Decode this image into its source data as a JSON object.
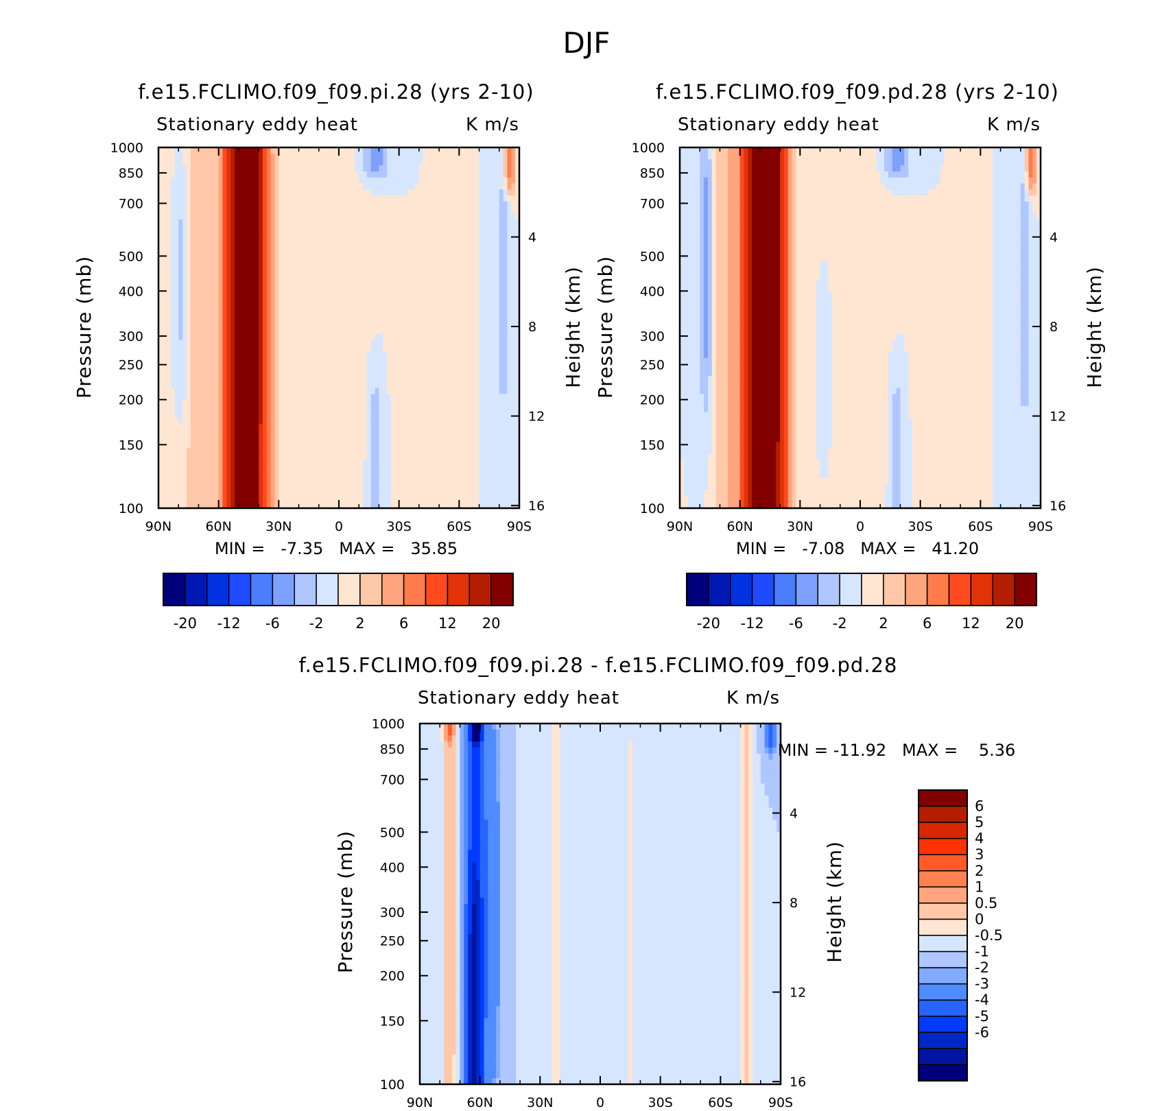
{
  "figure_title": "DJF",
  "colors": {
    "blue_red_16": [
      "#00007d",
      "#0019b4",
      "#0032e1",
      "#1e4bff",
      "#4b7dff",
      "#7ea0ff",
      "#afc6ff",
      "#d7e6ff",
      "#ffe6d2",
      "#ffc8a8",
      "#ffa47c",
      "#ff7b4b",
      "#ff4b1e",
      "#e1320a",
      "#b41e00",
      "#820000"
    ],
    "blue_red_18": [
      "#00007d",
      "#0014a0",
      "#0028c8",
      "#003cff",
      "#2864ff",
      "#508cff",
      "#82aaff",
      "#afc6ff",
      "#d7e6ff",
      "#ffe6d2",
      "#ffc8a8",
      "#ffa47c",
      "#ff8250",
      "#ff5a28",
      "#ff3200",
      "#d72800",
      "#b41e00",
      "#820000"
    ]
  },
  "chart_data": [
    {
      "type": "contour",
      "id": "pi",
      "title": "f.e15.FCLIMO.f09_f09.pi.28 (yrs 2-10)",
      "left_string": "Stationary eddy heat",
      "right_string": "K m/s",
      "ylabel": "Pressure (mb)",
      "y2label": "Height (km)",
      "x_ticks": [
        "90N",
        "60N",
        "30N",
        "0",
        "30S",
        "60S",
        "90S"
      ],
      "y_ticks": [
        "100",
        "150",
        "200",
        "250",
        "300",
        "400",
        "500",
        "700",
        "850",
        "1000"
      ],
      "y2_ticks": [
        "16",
        "12",
        "8",
        "4"
      ],
      "stats_text": "MIN =   -7.35   MAX =   35.85",
      "min": -7.35,
      "max": 35.85,
      "colorbar_labels": [
        "-20",
        "-12",
        "-6",
        "-2",
        "2",
        "6",
        "12",
        "20"
      ],
      "features": [
        {
          "lat": 47,
          "p_low": 100,
          "p_high": 1000,
          "amp": 30,
          "lw": 9,
          "dw": 1.0
        },
        {
          "lat": 45,
          "p_low": 300,
          "p_high": 1000,
          "amp": 8,
          "lw": 5,
          "dw": 0.45
        },
        {
          "lat": 70,
          "p_low": 150,
          "p_high": 1000,
          "amp": 3.5,
          "lw": 7,
          "dw": 1.0
        },
        {
          "lat": 35,
          "p_low": 100,
          "p_high": 700,
          "amp": 1.5,
          "lw": 6,
          "dw": 0.8
        },
        {
          "lat": 78,
          "p_low": 300,
          "p_high": 600,
          "amp": -3,
          "lw": 3,
          "dw": 0.2
        },
        {
          "lat": -18,
          "p_low": 100,
          "p_high": 200,
          "amp": -2.5,
          "lw": 3.5,
          "dw": 0.12
        },
        {
          "lat": -18,
          "p_low": 900,
          "p_high": 1000,
          "amp": -5,
          "lw": 7,
          "dw": 0.05
        },
        {
          "lat": -5,
          "p_low": 300,
          "p_high": 900,
          "amp": 0.8,
          "lw": 12,
          "dw": 0.5
        },
        {
          "lat": -82,
          "p_low": 300,
          "p_high": 850,
          "amp": -3,
          "lw": 3,
          "dw": 0.3
        },
        {
          "lat": -85,
          "p_low": 850,
          "p_high": 1000,
          "amp": 8,
          "lw": 3,
          "dw": 0.06
        },
        {
          "lat": -62,
          "p_low": 300,
          "p_high": 800,
          "amp": 0.6,
          "lw": 2.5,
          "dw": 0.4
        }
      ]
    },
    {
      "type": "contour",
      "id": "pd",
      "title": "f.e15.FCLIMO.f09_f09.pd.28 (yrs 2-10)",
      "left_string": "Stationary eddy heat",
      "right_string": "K m/s",
      "ylabel": "Pressure (mb)",
      "y2label": "Height (km)",
      "x_ticks": [
        "90N",
        "60N",
        "30N",
        "0",
        "30S",
        "60S",
        "90S"
      ],
      "y_ticks": [
        "100",
        "150",
        "200",
        "250",
        "300",
        "400",
        "500",
        "700",
        "850",
        "1000"
      ],
      "y2_ticks": [
        "16",
        "12",
        "8",
        "4"
      ],
      "stats_text": "MIN =   -7.08   MAX =   41.20",
      "min": -7.08,
      "max": 41.2,
      "colorbar_labels": [
        "-20",
        "-12",
        "-6",
        "-2",
        "2",
        "6",
        "12",
        "20"
      ],
      "features": [
        {
          "lat": 48,
          "p_low": 100,
          "p_high": 1000,
          "amp": 33,
          "lw": 9,
          "dw": 1.0
        },
        {
          "lat": 47,
          "p_low": 300,
          "p_high": 1000,
          "amp": 8,
          "lw": 5,
          "dw": 0.45
        },
        {
          "lat": 67,
          "p_low": 100,
          "p_high": 1000,
          "amp": 3.5,
          "lw": 6,
          "dw": 1.0
        },
        {
          "lat": 77,
          "p_low": 300,
          "p_high": 700,
          "amp": -4.5,
          "lw": 3.5,
          "dw": 0.25
        },
        {
          "lat": 36,
          "p_low": 100,
          "p_high": 700,
          "amp": 1.5,
          "lw": 6,
          "dw": 0.8
        },
        {
          "lat": 18,
          "p_low": 200,
          "p_high": 300,
          "amp": -2,
          "lw": 2,
          "dw": 0.1
        },
        {
          "lat": -18,
          "p_low": 100,
          "p_high": 200,
          "amp": -2.5,
          "lw": 3.5,
          "dw": 0.12
        },
        {
          "lat": -18,
          "p_low": 900,
          "p_high": 1000,
          "amp": -5,
          "lw": 7,
          "dw": 0.05
        },
        {
          "lat": -5,
          "p_low": 250,
          "p_high": 900,
          "amp": 0.8,
          "lw": 12,
          "dw": 0.5
        },
        {
          "lat": -82,
          "p_low": 300,
          "p_high": 850,
          "amp": -3.5,
          "lw": 3,
          "dw": 0.3
        },
        {
          "lat": -85,
          "p_low": 850,
          "p_high": 1000,
          "amp": 8,
          "lw": 3,
          "dw": 0.06
        }
      ]
    },
    {
      "type": "contour",
      "id": "diff",
      "title": "f.e15.FCLIMO.f09_f09.pi.28 - f.e15.FCLIMO.f09_f09.pd.28",
      "left_string": "Stationary eddy heat",
      "right_string": "K m/s",
      "ylabel": "Pressure (mb)",
      "y2label": "Height (km)",
      "x_ticks": [
        "90N",
        "60N",
        "30N",
        "0",
        "30S",
        "60S",
        "90S"
      ],
      "y_ticks": [
        "100",
        "150",
        "200",
        "250",
        "300",
        "400",
        "500",
        "700",
        "850",
        "1000"
      ],
      "y2_ticks": [
        "16",
        "12",
        "8",
        "4"
      ],
      "stats_text": "MIN = -11.92   MAX =    5.36",
      "min": -11.92,
      "max": 5.36,
      "colorbar_labels": [
        "6",
        "5",
        "4",
        "3",
        "2",
        "1",
        "0.5",
        "0",
        "-0.5",
        "-1",
        "-2",
        "-3",
        "-4",
        "-5",
        "-6"
      ],
      "features": [
        {
          "lat": 62,
          "p_low": 100,
          "p_high": 1000,
          "amp": -3.5,
          "lw": 6,
          "dw": 1.0
        },
        {
          "lat": 63,
          "p_low": 100,
          "p_high": 250,
          "amp": -2,
          "lw": 3,
          "dw": 0.2
        },
        {
          "lat": 53,
          "p_low": 200,
          "p_high": 500,
          "amp": -1.5,
          "lw": 3,
          "dw": 0.3
        },
        {
          "lat": 75,
          "p_low": 250,
          "p_high": 1000,
          "amp": 1.8,
          "lw": 3.5,
          "dw": 0.8
        },
        {
          "lat": 75,
          "p_low": 950,
          "p_high": 1000,
          "amp": 3,
          "lw": 2,
          "dw": 0.03
        },
        {
          "lat": 62,
          "p_low": 950,
          "p_high": 1000,
          "amp": -6,
          "lw": 2,
          "dw": 0.03
        },
        {
          "lat": 22,
          "p_low": 100,
          "p_high": 900,
          "amp": 0.6,
          "lw": 6,
          "dw": 0.8
        },
        {
          "lat": -15,
          "p_low": 100,
          "p_high": 900,
          "amp": 0.5,
          "lw": 8,
          "dw": 0.8
        },
        {
          "lat": -73,
          "p_low": 250,
          "p_high": 1000,
          "amp": 1.6,
          "lw": 2.5,
          "dw": 0.8
        },
        {
          "lat": -85,
          "p_low": 900,
          "p_high": 1000,
          "amp": -3,
          "lw": 2.5,
          "dw": 0.04
        }
      ]
    }
  ]
}
